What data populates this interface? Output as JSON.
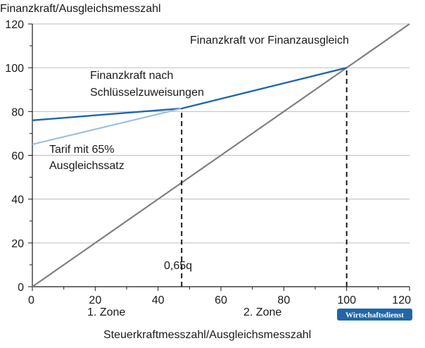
{
  "chart_data": {
    "type": "line",
    "ylabel": "Finanzkraft/Ausgleichsmesszahl",
    "xlabel": "Steuerkraftmesszahl/Ausgleichsmesszahl",
    "xlim": [
      0,
      120
    ],
    "ylim": [
      0,
      120
    ],
    "x_ticks": [
      0,
      20,
      40,
      60,
      80,
      100,
      120
    ],
    "y_ticks": [
      0,
      20,
      40,
      60,
      80,
      100,
      120
    ],
    "grid": "horizontal",
    "series": [
      {
        "name": "Finanzkraft vor Finanzausgleich",
        "color": "#7f7f7f",
        "x": [
          0,
          120
        ],
        "y": [
          0,
          120
        ]
      },
      {
        "name": "Finanzkraft nach Schlüsselzuweisungen",
        "color": "#1f67a8",
        "x": [
          0,
          47.5,
          100
        ],
        "y": [
          76,
          81.4,
          100
        ]
      },
      {
        "name": "Tarif mit 65% Ausgleichssatz",
        "color": "#9fbfe0",
        "x": [
          0,
          47.5
        ],
        "y": [
          65,
          81.4
        ]
      }
    ],
    "reference_lines": [
      {
        "x": 47.5,
        "y": [
          0,
          81.4
        ],
        "style": "dashed",
        "label": "0,65q"
      },
      {
        "x": 100,
        "y": [
          0,
          100
        ],
        "style": "dashed"
      }
    ],
    "annotations": {
      "vor": "Finanzkraft vor Finanzausgleich",
      "nach_line1": "Finanzkraft nach",
      "nach_line2": "Schlüsselzuweisungen",
      "tarif_line1": "Tarif mit 65%",
      "tarif_line2": "Ausgleichssatz",
      "q": "0,65q"
    },
    "zones": [
      "1. Zone",
      "2. Zone"
    ],
    "source_logo": "Wirtschaftsdienst"
  }
}
